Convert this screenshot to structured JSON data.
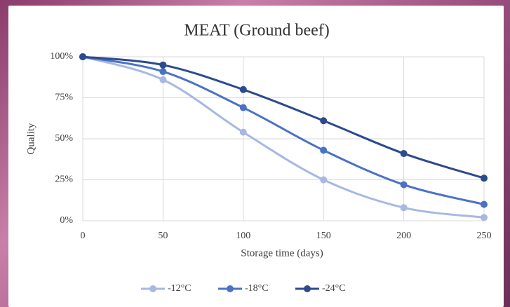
{
  "chart_data": {
    "type": "line",
    "smooth": true,
    "title": "MEAT (Ground beef)",
    "x_label": "Storage time (days)",
    "y_label": "Quality",
    "x": [
      0,
      50,
      100,
      150,
      200,
      250
    ],
    "xlim": [
      0,
      250
    ],
    "xticks": [
      0,
      50,
      100,
      150,
      200,
      250
    ],
    "ylim": [
      0,
      100
    ],
    "yticks": [
      {
        "value": 0,
        "label": "0%"
      },
      {
        "value": 25,
        "label": "25%"
      },
      {
        "value": 50,
        "label": "50%"
      },
      {
        "value": 75,
        "label": "75%"
      },
      {
        "value": 100,
        "label": "100%"
      }
    ],
    "grid": true,
    "legend": "bottom",
    "series": [
      {
        "name": "-12°C",
        "color": "#a8b8e2",
        "values": [
          100,
          86,
          54,
          25,
          8,
          2
        ]
      },
      {
        "name": "-18°C",
        "color": "#4a72c6",
        "values": [
          100,
          91,
          69,
          43,
          22,
          10
        ]
      },
      {
        "name": "-24°C",
        "color": "#2c4a8e",
        "values": [
          100,
          95,
          80,
          61,
          41,
          26
        ]
      }
    ]
  }
}
